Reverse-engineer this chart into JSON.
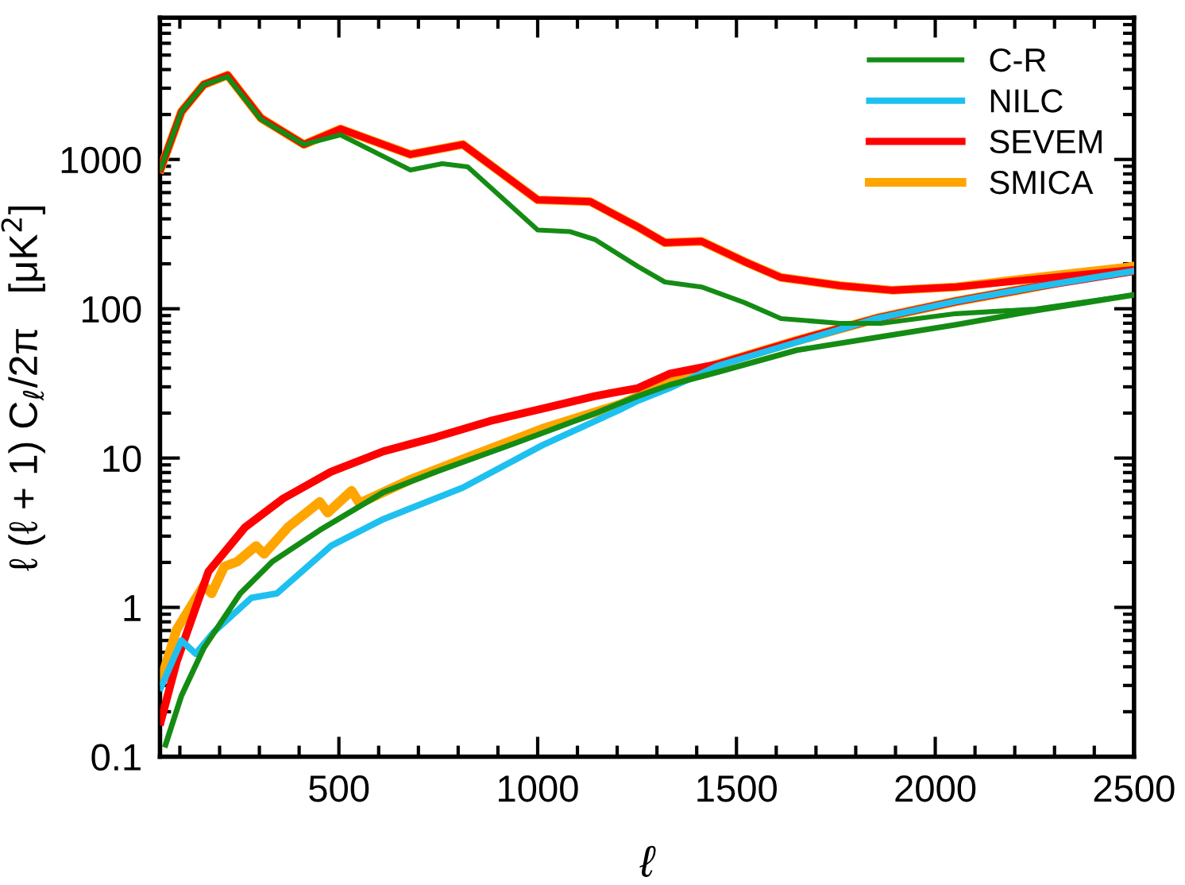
{
  "chart_data": {
    "type": "line",
    "xlabel": "ℓ",
    "ylabel": "ℓ (ℓ + 1) C$_{ℓ}$/2π   [μK$^{2}$]",
    "log": "y",
    "xlim": [
      50,
      2500
    ],
    "xticks": [
      500,
      1000,
      1500,
      2000,
      2500
    ],
    "ylim": [
      0.1,
      8900
    ],
    "yticks": [
      0.1,
      1,
      10,
      100,
      1000
    ],
    "legend": "top right",
    "grid": false,
    "line_style": "solid",
    "marker": "none",
    "series": [
      {
        "name": "C-R",
        "color": "#148c14",
        "x": [
          52,
          104,
          160,
          220,
          304,
          412,
          504,
          680,
          760,
          824,
          1000,
          1080,
          1144,
          1252,
          1320,
          1412,
          1520,
          1612,
          1760,
          1864,
          2052,
          2252,
          2500
        ],
        "values": [
          867,
          2090,
          3170,
          3580,
          1860,
          1260,
          1460,
          850,
          937,
          892,
          337,
          329,
          291,
          192,
          151,
          140,
          110,
          86,
          79.9,
          79.9,
          92.7,
          99.6,
          124
        ]
      },
      {
        "color": "#148c14",
        "x": [
          64,
          104,
          160,
          252,
          332,
          452,
          612,
          744,
          944,
          1144,
          1252,
          1332,
          1452,
          1652,
          1852,
          2052,
          2252,
          2500
        ],
        "values": [
          0.12,
          0.256,
          0.533,
          1.24,
          2.02,
          3.29,
          5.9,
          8.09,
          12.6,
          19.9,
          26,
          30.9,
          37.6,
          52.8,
          64.2,
          78.1,
          97.2,
          124
        ]
      },
      {
        "name": "NILC",
        "color": "#1ec0f0",
        "x": [
          52,
          104,
          140,
          184,
          280,
          344,
          480,
          612,
          812,
          1012,
          1212,
          1252,
          1332,
          1452,
          1652,
          1852,
          2052,
          2252,
          2500
        ],
        "values": [
          0.289,
          0.6,
          0.489,
          0.678,
          1.16,
          1.24,
          2.58,
          3.9,
          6.34,
          12.2,
          21.4,
          24.2,
          29.4,
          41.4,
          59.7,
          86,
          112,
          140,
          179
        ]
      },
      {
        "name": "SEVEM",
        "color": "#ff0000",
        "x": [
          52,
          104,
          160,
          220,
          304,
          412,
          504,
          680,
          812,
          1000,
          1132,
          1252,
          1320,
          1412,
          1520,
          1612,
          1760,
          1892,
          2052,
          2252,
          2500
        ],
        "values": [
          867,
          2090,
          3170,
          3670,
          1890,
          1260,
          1600,
          1080,
          1260,
          536,
          522,
          353,
          277,
          283,
          207,
          162,
          143,
          133,
          140,
          158,
          183
        ]
      },
      {
        "color": "#ff0000",
        "x": [
          52,
          92,
          172,
          264,
          360,
          480,
          612,
          744,
          880,
          1012,
          1144,
          1252,
          1332,
          1452,
          1652,
          1852,
          2052,
          2252,
          2500
        ],
        "values": [
          0.172,
          0.433,
          1.74,
          3.44,
          5.36,
          8.09,
          11.1,
          13.8,
          17.7,
          21.4,
          26,
          29.4,
          36.7,
          42.4,
          61.2,
          86,
          112,
          140,
          179
        ]
      },
      {
        "name": "SMICA",
        "color": "#ffa500",
        "x": [
          52,
          104,
          160,
          220,
          304,
          412,
          504,
          680,
          812,
          1000,
          1132,
          1252,
          1320,
          1412,
          1520,
          1612,
          1760,
          1892,
          2052,
          2252,
          2500
        ],
        "values": [
          867,
          2090,
          3170,
          3670,
          1890,
          1260,
          1600,
          1080,
          1260,
          536,
          522,
          353,
          277,
          283,
          207,
          162,
          143,
          133,
          140,
          162,
          192
        ]
      },
      {
        "color": "#ffa500",
        "x": [
          52,
          92,
          160,
          180,
          212,
          244,
          292,
          312,
          372,
          452,
          472,
          532,
          552,
          680,
          812,
          1012,
          1212,
          1332,
          1452,
          1652,
          1852,
          2052,
          2252,
          2500
        ],
        "values": [
          0.322,
          0.711,
          1.4,
          1.24,
          1.88,
          2.02,
          2.58,
          2.28,
          3.44,
          5.09,
          4.3,
          6.04,
          4.98,
          7.17,
          9.83,
          15.7,
          23.1,
          32.4,
          42.4,
          61.2,
          86,
          112,
          140,
          192
        ]
      }
    ]
  }
}
